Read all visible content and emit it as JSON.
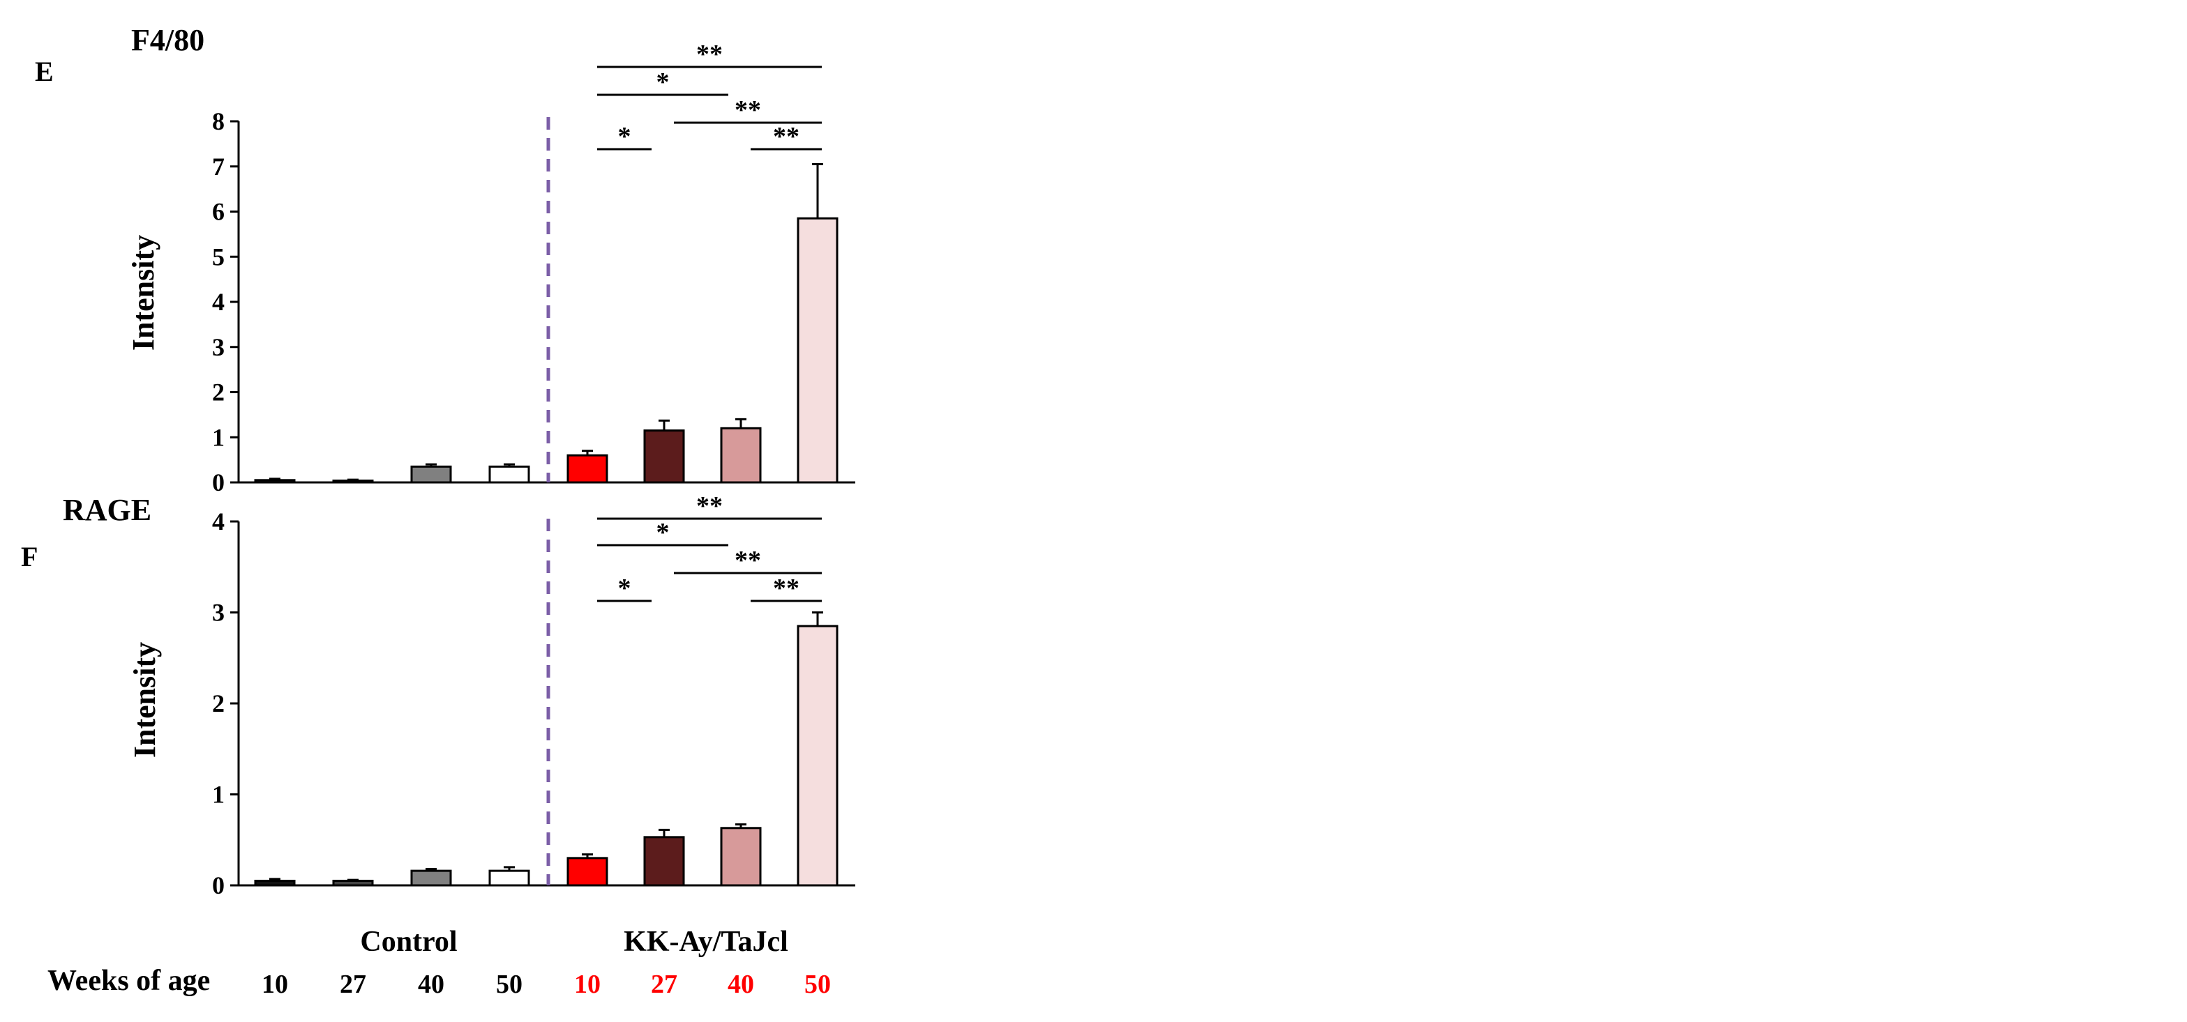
{
  "chart_data": [
    {
      "type": "bar",
      "panel_letter": "E",
      "title": "F4/80",
      "ylabel": "Intensity",
      "ylim": [
        0,
        8
      ],
      "yticks": [
        0,
        1,
        2,
        3,
        4,
        5,
        6,
        7,
        8
      ],
      "categories": [
        "10",
        "27",
        "40",
        "50",
        "10",
        "27",
        "40",
        "50"
      ],
      "values": [
        0.05,
        0.04,
        0.35,
        0.35,
        0.6,
        1.15,
        1.2,
        5.85
      ],
      "errors": [
        0.03,
        0.02,
        0.05,
        0.05,
        0.1,
        0.22,
        0.2,
        1.2
      ],
      "bar_colors": [
        "#111111",
        "#444444",
        "#808080",
        "#ffffff",
        "#ff0000",
        "#5c1c1c",
        "#d79a9a",
        "#f5dede"
      ],
      "significance": [
        {
          "from": 4,
          "to": 7,
          "label": "**"
        },
        {
          "from": 4,
          "to": 6,
          "label": "*"
        },
        {
          "from": 5,
          "to": 7,
          "label": "**"
        },
        {
          "from": 4,
          "to": 5,
          "label": "*"
        },
        {
          "from": 6,
          "to": 7,
          "label": "**"
        }
      ]
    },
    {
      "type": "bar",
      "panel_letter": "F",
      "title": "RAGE",
      "ylabel": "Intensity",
      "ylim": [
        0,
        4
      ],
      "yticks": [
        0,
        1,
        2,
        3,
        4
      ],
      "categories": [
        "10",
        "27",
        "40",
        "50",
        "10",
        "27",
        "40",
        "50"
      ],
      "values": [
        0.05,
        0.05,
        0.16,
        0.16,
        0.3,
        0.53,
        0.63,
        2.85
      ],
      "errors": [
        0.02,
        0.01,
        0.02,
        0.04,
        0.04,
        0.08,
        0.04,
        0.15
      ],
      "bar_colors": [
        "#111111",
        "#444444",
        "#808080",
        "#ffffff",
        "#ff0000",
        "#5c1c1c",
        "#d79a9a",
        "#f5dede"
      ],
      "significance": [
        {
          "from": 4,
          "to": 7,
          "label": "**"
        },
        {
          "from": 4,
          "to": 6,
          "label": "*"
        },
        {
          "from": 5,
          "to": 7,
          "label": "**"
        },
        {
          "from": 4,
          "to": 5,
          "label": "*"
        },
        {
          "from": 6,
          "to": 7,
          "label": "**"
        }
      ]
    }
  ],
  "groups": [
    {
      "label": "Control",
      "color": "#000000"
    },
    {
      "label": "KK-Ay/TaJcl",
      "color": "#ff0000"
    }
  ],
  "xrow_label": "Weeks of age",
  "colors": {
    "divider": "#7b5ea7",
    "control_text": "#000000",
    "disease_text": "#ff0000"
  }
}
